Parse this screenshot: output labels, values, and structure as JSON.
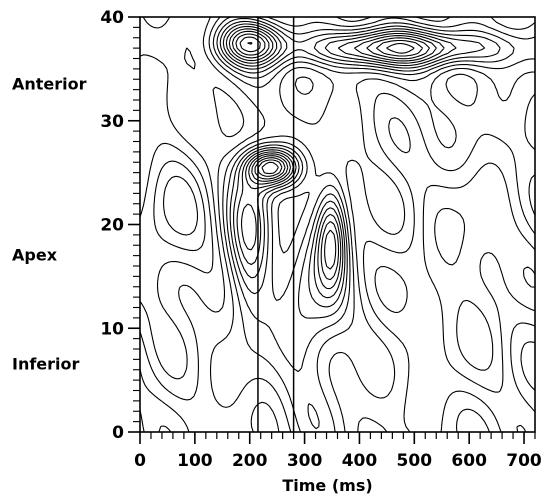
{
  "chart_data": {
    "type": "contour",
    "title": "",
    "xlabel": "Time (ms)",
    "ylabel": "",
    "xlim": [
      0,
      720
    ],
    "ylim": [
      0,
      40
    ],
    "x_ticks": [
      "0",
      "100",
      "200",
      "300",
      "400",
      "500",
      "600",
      "700"
    ],
    "y_ticks": [
      "0",
      "10",
      "20",
      "30",
      "40"
    ],
    "region_labels": [
      {
        "text": "Anterior",
        "y": 33.5
      },
      {
        "text": "Apex",
        "y": 17
      },
      {
        "text": "Inferior",
        "y": 6.5
      }
    ],
    "vertical_markers": [
      215,
      280
    ],
    "contour_levels": 16
  }
}
